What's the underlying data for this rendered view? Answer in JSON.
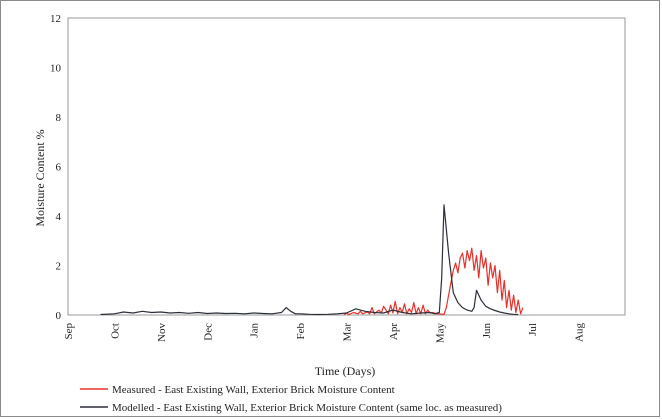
{
  "chart_data": {
    "type": "line",
    "xlabel": "Time (Days)",
    "ylabel": "Moisture Content %",
    "ylim": [
      0,
      12
    ],
    "yticks": [
      0,
      2,
      4,
      6,
      8,
      10,
      12
    ],
    "xlim": [
      0,
      12
    ],
    "xtick_labels": [
      "Sep",
      "Oct",
      "Nov",
      "Dec",
      "Jan",
      "Feb",
      "Mar",
      "Apr",
      "May",
      "Jun",
      "Jul",
      "Aug"
    ],
    "grid": true,
    "legend_position": "bottom",
    "series": [
      {
        "name": "Measured - East Existing Wall, Exterior Brick Moisture Content",
        "color": "#e8302a",
        "x": [
          5.95,
          6.0,
          6.05,
          6.15,
          6.25,
          6.3,
          6.35,
          6.45,
          6.5,
          6.55,
          6.6,
          6.7,
          6.75,
          6.8,
          6.9,
          6.95,
          7.0,
          7.05,
          7.1,
          7.15,
          7.2,
          7.25,
          7.3,
          7.35,
          7.4,
          7.45,
          7.5,
          7.55,
          7.6,
          7.65,
          7.7,
          7.75,
          7.8,
          7.85,
          7.95,
          8.0,
          8.1,
          8.15,
          8.2,
          8.25,
          8.3,
          8.35,
          8.4,
          8.45,
          8.5,
          8.55,
          8.6,
          8.65,
          8.7,
          8.75,
          8.8,
          8.85,
          8.9,
          8.95,
          9.0,
          9.05,
          9.1,
          9.15,
          9.2,
          9.25,
          9.3,
          9.35,
          9.4,
          9.45,
          9.5,
          9.55,
          9.6,
          9.65,
          9.7,
          9.75,
          9.8
        ],
        "y": [
          0.02,
          0.08,
          0.02,
          0.1,
          0.05,
          0.15,
          0.05,
          0.12,
          0.05,
          0.3,
          0.05,
          0.2,
          0.08,
          0.35,
          0.05,
          0.4,
          0.08,
          0.55,
          0.05,
          0.3,
          0.1,
          0.45,
          0.05,
          0.25,
          0.1,
          0.5,
          0.05,
          0.3,
          0.05,
          0.4,
          0.05,
          0.2,
          0.08,
          0.1,
          0.05,
          0.05,
          0.02,
          0.3,
          0.8,
          1.3,
          1.8,
          2.1,
          1.7,
          2.3,
          2.5,
          1.9,
          2.6,
          2.2,
          2.7,
          1.8,
          2.4,
          1.5,
          2.6,
          1.9,
          2.3,
          1.2,
          2.1,
          1.5,
          2.0,
          0.9,
          1.8,
          0.6,
          1.4,
          0.3,
          1.0,
          0.2,
          0.8,
          0.1,
          0.6,
          0.05,
          0.3
        ]
      },
      {
        "name": "Modelled - East Existing Wall, Exterior Brick Moisture Content (same loc. as measured)",
        "color": "#2b2f3a",
        "x": [
          0.7,
          1.0,
          1.2,
          1.4,
          1.6,
          1.8,
          2.0,
          2.2,
          2.4,
          2.6,
          2.8,
          3.0,
          3.2,
          3.4,
          3.6,
          3.8,
          4.0,
          4.2,
          4.4,
          4.6,
          4.7,
          4.8,
          4.9,
          5.0,
          5.2,
          5.4,
          5.6,
          5.8,
          6.0,
          6.2,
          6.4,
          6.6,
          6.8,
          7.0,
          7.2,
          7.4,
          7.6,
          7.8,
          7.9,
          8.0,
          8.05,
          8.1,
          8.2,
          8.3,
          8.4,
          8.5,
          8.6,
          8.7,
          8.75,
          8.8,
          8.9,
          9.0,
          9.1,
          9.2,
          9.3,
          9.4,
          9.5,
          9.6,
          9.7
        ],
        "y": [
          0.02,
          0.05,
          0.12,
          0.08,
          0.15,
          0.1,
          0.12,
          0.08,
          0.1,
          0.07,
          0.1,
          0.06,
          0.08,
          0.06,
          0.07,
          0.05,
          0.08,
          0.06,
          0.05,
          0.1,
          0.3,
          0.15,
          0.05,
          0.05,
          0.03,
          0.02,
          0.03,
          0.05,
          0.08,
          0.25,
          0.15,
          0.1,
          0.08,
          0.2,
          0.1,
          0.05,
          0.08,
          0.1,
          0.05,
          0.1,
          1.5,
          4.45,
          2.5,
          0.9,
          0.5,
          0.3,
          0.2,
          0.15,
          0.3,
          1.0,
          0.6,
          0.35,
          0.25,
          0.18,
          0.12,
          0.08,
          0.05,
          0.03,
          0.02
        ]
      }
    ]
  }
}
